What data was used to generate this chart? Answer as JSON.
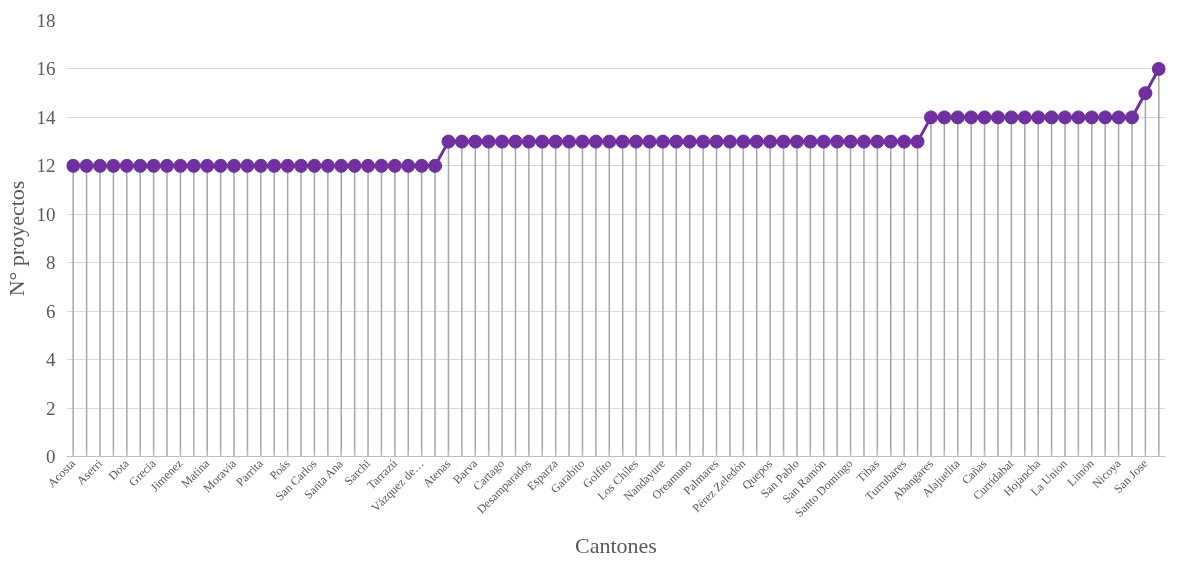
{
  "chart_data": {
    "type": "line",
    "xlabel": "Cantones",
    "ylabel": "N° proyectos",
    "categories": [
      "Acosta",
      null,
      "Aserri",
      null,
      "Dota",
      null,
      "Grecia",
      null,
      "Jimenez",
      null,
      "Matina",
      null,
      "Moravia",
      null,
      "Parrita",
      null,
      "Poás",
      null,
      "San Carlos",
      null,
      "Santa Ana",
      null,
      "Sarchi",
      null,
      "Tarrazú",
      null,
      "Vázquez de…",
      null,
      "Atenas",
      null,
      "Barva",
      null,
      "Cartago",
      null,
      "Desamparados",
      null,
      "Esparza",
      null,
      "Garabito",
      null,
      "Golfito",
      null,
      "Los Chiles",
      null,
      "Nandayure",
      null,
      "Oreamuno",
      null,
      "Palmares",
      null,
      "Pérez Zeledón",
      null,
      "Quepos",
      null,
      "San Pablo",
      null,
      "San Ramón",
      null,
      "Santo Domingo",
      null,
      "Tibas",
      null,
      "Turrubares",
      null,
      "Abangares",
      null,
      "Alajuelita",
      null,
      "Cañas",
      null,
      "Curridabat",
      null,
      "Hojancha",
      null,
      "La Union",
      null,
      "Limón",
      null,
      "Nicoya",
      null,
      "San Jose",
      null
    ],
    "values": [
      12,
      12,
      12,
      12,
      12,
      12,
      12,
      12,
      12,
      12,
      12,
      12,
      12,
      12,
      12,
      12,
      12,
      12,
      12,
      12,
      12,
      12,
      12,
      12,
      12,
      12,
      12,
      12,
      13,
      13,
      13,
      13,
      13,
      13,
      13,
      13,
      13,
      13,
      13,
      13,
      13,
      13,
      13,
      13,
      13,
      13,
      13,
      13,
      13,
      13,
      13,
      13,
      13,
      13,
      13,
      13,
      13,
      13,
      13,
      13,
      13,
      13,
      13,
      13,
      14,
      14,
      14,
      14,
      14,
      14,
      14,
      14,
      14,
      14,
      14,
      14,
      14,
      14,
      14,
      14,
      15,
      16
    ],
    "color": "#7030a0",
    "ylim": [
      0,
      18
    ],
    "yticks": [
      0,
      2,
      4,
      6,
      8,
      10,
      12,
      14,
      16,
      18
    ],
    "grid": true,
    "marker": "circle",
    "line_style": "solid"
  }
}
